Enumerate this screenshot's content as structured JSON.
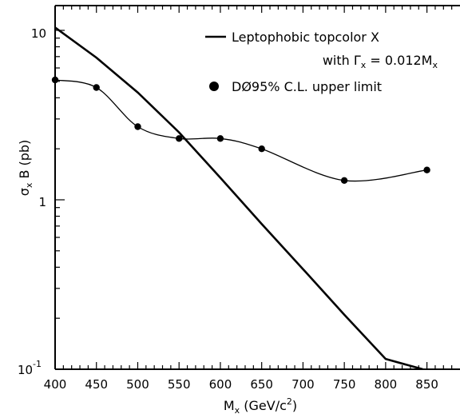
{
  "chart_data": {
    "type": "line",
    "title": "",
    "xlabel": "M",
    "xlabel_sub": "x",
    "xlabel_units": " (GeV/c",
    "xlabel_units_sup": "2",
    "xlabel_units_close": ")",
    "ylabel": "σ",
    "ylabel_sub": "x",
    "ylabel_rest": " B  (pb)",
    "xlim": [
      400,
      890
    ],
    "ylim": [
      0.1,
      14
    ],
    "yscale": "log",
    "grid": false,
    "legend_position": "top-right",
    "x_ticks": [
      "400",
      "450",
      "500",
      "550",
      "600",
      "650",
      "700",
      "750",
      "800",
      "850"
    ],
    "y_tick_labels": {
      "10": "10",
      "1": "1",
      "0.1_base": "10",
      "0.1_exp": "-1"
    },
    "legend": {
      "line_label": "Leptophobic topcolor X",
      "line_label2_pre": "with Γ",
      "line_label2_sub": "x",
      "line_label2_mid": " = 0.012M",
      "line_label2_sub2": "x",
      "marker_label": "DØ95% C.L. upper limit"
    },
    "series": [
      {
        "name": "Leptophobic topcolor X",
        "style": "line",
        "x": [
          400,
          450,
          500,
          550,
          600,
          650,
          700,
          750,
          800,
          845
        ],
        "y": [
          10.4,
          6.9,
          4.3,
          2.5,
          1.35,
          0.72,
          0.39,
          0.21,
          0.115,
          0.1
        ]
      },
      {
        "name": "DØ95% C.L. upper limit",
        "style": "markers+smooth",
        "x": [
          400,
          450,
          500,
          550,
          600,
          650,
          750,
          850
        ],
        "y": [
          5.1,
          4.6,
          2.7,
          2.3,
          2.3,
          2.0,
          1.3,
          1.5
        ]
      }
    ]
  }
}
